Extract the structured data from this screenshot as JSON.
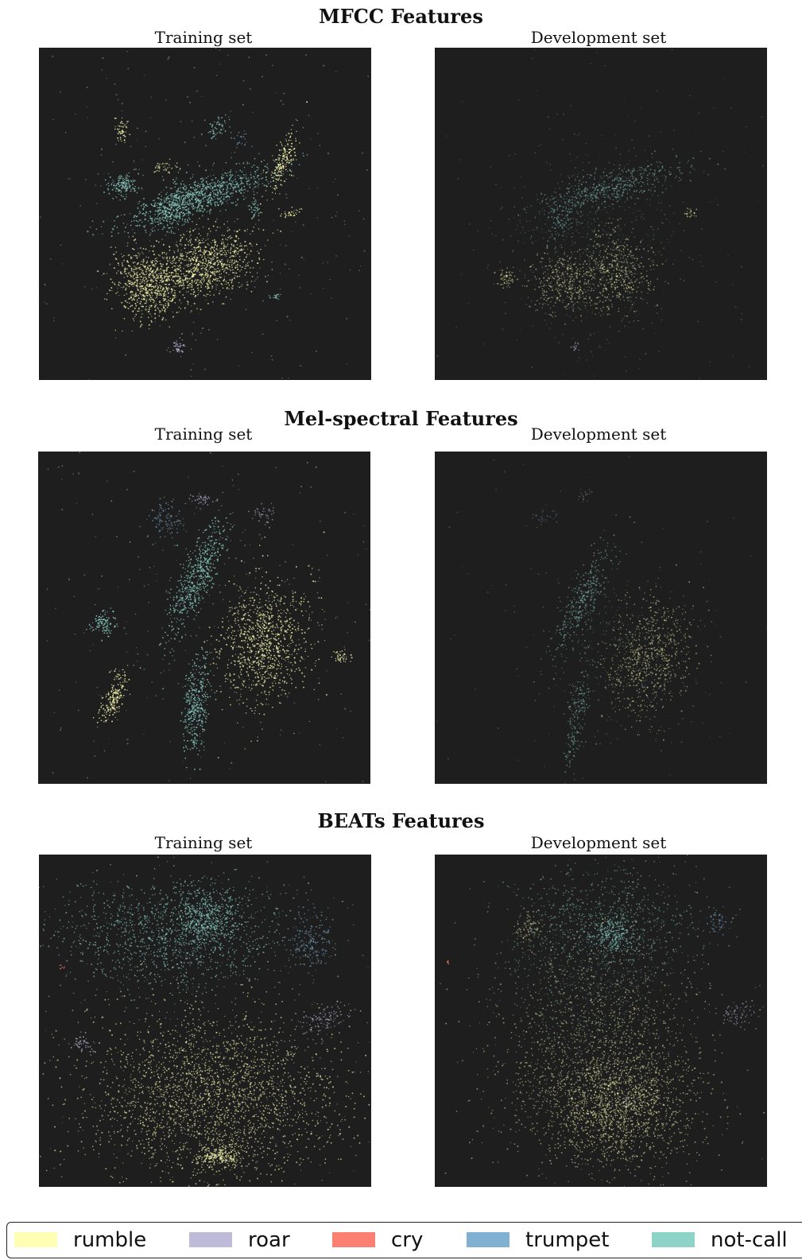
{
  "legend": [
    {
      "label": "rumble",
      "color": "#ffffb3"
    },
    {
      "label": "roar",
      "color": "#bebada"
    },
    {
      "label": "cry",
      "color": "#fb8072"
    },
    {
      "label": "trumpet",
      "color": "#80b1d3"
    },
    {
      "label": "not-call",
      "color": "#8dd3c7"
    }
  ],
  "sections": [
    {
      "title": "MFCC Features",
      "left": "Training set",
      "right": "Development set"
    },
    {
      "title": "Mel-spectral Features",
      "left": "Training set",
      "right": "Development set"
    },
    {
      "title": "BEATs Features",
      "left": "Training set",
      "right": "Development set"
    }
  ],
  "chart_data": {
    "type": "scatter",
    "description": "t-SNE style 2D embeddings of audio features colored by call type",
    "series": [
      {
        "name": "rumble",
        "color": "#ffffb3"
      },
      {
        "name": "roar",
        "color": "#bebada"
      },
      {
        "name": "cry",
        "color": "#fb8072"
      },
      {
        "name": "trumpet",
        "color": "#80b1d3"
      },
      {
        "name": "not-call",
        "color": "#8dd3c7"
      }
    ],
    "background": "#1e1e1e",
    "axes_visible": false,
    "grid": false,
    "legend_placement": "bottom"
  }
}
